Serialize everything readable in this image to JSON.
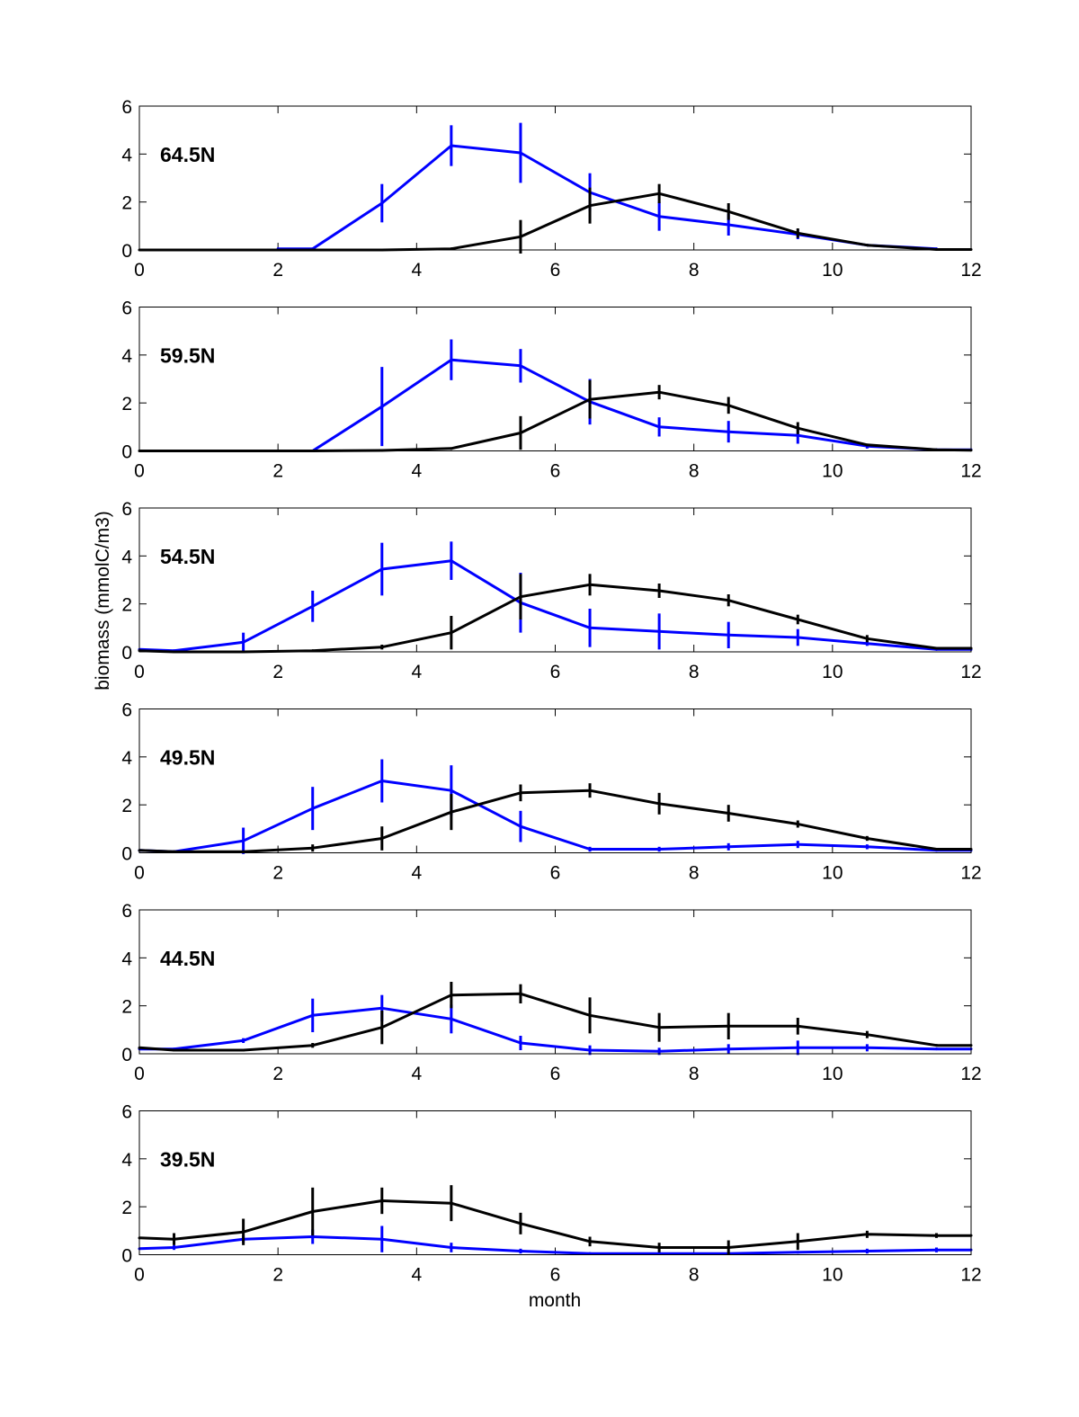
{
  "chart_data": {
    "type": "line",
    "xlabel": "month",
    "ylabel": "biomass (mmolC/m3)",
    "xlim": [
      0,
      12
    ],
    "ylim": [
      0,
      6
    ],
    "xticks": [
      0,
      2,
      4,
      6,
      8,
      10,
      12
    ],
    "yticks": [
      0,
      2,
      4,
      6
    ],
    "grid": false,
    "legend": null,
    "series_colors": {
      "blue": "#0000ff",
      "black": "#000000"
    },
    "panels": [
      {
        "label": "64.5N",
        "series": [
          {
            "name": "blue",
            "x": [
              2,
              2.5,
              3.5,
              4.5,
              5.5,
              6.5,
              7.5,
              8.5,
              9.5,
              10.5,
              11.5
            ],
            "y": [
              0.05,
              0.05,
              1.95,
              4.35,
              4.05,
              2.4,
              1.4,
              1.05,
              0.65,
              0.2,
              0.05
            ],
            "err": [
              0,
              0,
              0.8,
              0.85,
              1.25,
              0.8,
              0.6,
              0.45,
              0.2,
              0.05,
              0
            ]
          },
          {
            "name": "black",
            "x": [
              0,
              0.5,
              1.5,
              2.5,
              3.5,
              4.5,
              5.5,
              6.5,
              7.5,
              8.5,
              9.5,
              10.5,
              11.5,
              12
            ],
            "y": [
              0,
              0,
              0,
              0,
              0,
              0.05,
              0.55,
              1.85,
              2.35,
              1.6,
              0.7,
              0.2,
              0.02,
              0.02
            ],
            "err": [
              0,
              0,
              0,
              0,
              0,
              0,
              0.7,
              0.75,
              0.4,
              0.35,
              0.2,
              0.05,
              0,
              0
            ]
          }
        ]
      },
      {
        "label": "59.5N",
        "series": [
          {
            "name": "blue",
            "x": [
              2.5,
              3.5,
              4.5,
              5.5,
              6.5,
              7.5,
              8.5,
              9.5,
              10.5,
              11.5,
              12
            ],
            "y": [
              0,
              1.85,
              3.8,
              3.55,
              2.05,
              1.0,
              0.8,
              0.65,
              0.2,
              0.05,
              0.05
            ],
            "err": [
              0,
              1.65,
              0.85,
              0.7,
              0.95,
              0.4,
              0.45,
              0.35,
              0.1,
              0,
              0
            ]
          },
          {
            "name": "black",
            "x": [
              0,
              0.5,
              1.5,
              2.5,
              3.5,
              4.5,
              5.5,
              6.5,
              7.5,
              8.5,
              9.5,
              10.5,
              11.5,
              12
            ],
            "y": [
              0,
              0,
              0,
              0,
              0.02,
              0.1,
              0.75,
              2.15,
              2.45,
              1.9,
              0.95,
              0.25,
              0.05,
              0.03
            ],
            "err": [
              0,
              0,
              0,
              0,
              0,
              0.05,
              0.7,
              0.8,
              0.3,
              0.35,
              0.25,
              0.05,
              0,
              0
            ]
          }
        ]
      },
      {
        "label": "54.5N",
        "series": [
          {
            "name": "blue",
            "x": [
              0,
              0.5,
              1.5,
              2.5,
              3.5,
              4.5,
              5.5,
              6.5,
              7.5,
              8.5,
              9.5,
              10.5,
              11.5,
              12
            ],
            "y": [
              0.1,
              0.05,
              0.4,
              1.9,
              3.45,
              3.8,
              2.05,
              1.0,
              0.85,
              0.7,
              0.6,
              0.35,
              0.1,
              0.1
            ],
            "err": [
              0,
              0,
              0.4,
              0.65,
              1.1,
              0.8,
              1.25,
              0.8,
              0.75,
              0.55,
              0.35,
              0.1,
              0,
              0
            ]
          },
          {
            "name": "black",
            "x": [
              0,
              0.5,
              1.5,
              2.5,
              3.5,
              4.5,
              5.5,
              6.5,
              7.5,
              8.5,
              9.5,
              10.5,
              11.5,
              12
            ],
            "y": [
              0.05,
              0,
              0,
              0.05,
              0.2,
              0.8,
              2.3,
              2.8,
              2.55,
              2.15,
              1.35,
              0.55,
              0.15,
              0.15
            ],
            "err": [
              0,
              0,
              0,
              0,
              0.1,
              0.7,
              0.95,
              0.45,
              0.3,
              0.25,
              0.2,
              0.15,
              0,
              0
            ]
          }
        ]
      },
      {
        "label": "49.5N",
        "series": [
          {
            "name": "blue",
            "x": [
              0,
              0.5,
              1.5,
              2.5,
              3.5,
              4.5,
              5.5,
              6.5,
              7.5,
              8.5,
              9.5,
              10.5,
              11.5,
              12
            ],
            "y": [
              0.1,
              0.05,
              0.5,
              1.85,
              3.0,
              2.6,
              1.1,
              0.15,
              0.15,
              0.25,
              0.35,
              0.25,
              0.1,
              0.1
            ],
            "err": [
              0,
              0,
              0.55,
              0.9,
              0.9,
              1.05,
              0.65,
              0.1,
              0.1,
              0.15,
              0.15,
              0.1,
              0,
              0
            ]
          },
          {
            "name": "black",
            "x": [
              0,
              0.5,
              1.5,
              2.5,
              3.5,
              4.5,
              5.5,
              6.5,
              7.5,
              8.5,
              9.5,
              10.5,
              11.5,
              12
            ],
            "y": [
              0.1,
              0.05,
              0.05,
              0.2,
              0.6,
              1.7,
              2.5,
              2.6,
              2.05,
              1.65,
              1.2,
              0.6,
              0.15,
              0.15
            ],
            "err": [
              0,
              0,
              0,
              0.15,
              0.5,
              0.75,
              0.35,
              0.3,
              0.45,
              0.35,
              0.15,
              0.1,
              0,
              0
            ]
          }
        ]
      },
      {
        "label": "44.5N",
        "series": [
          {
            "name": "blue",
            "x": [
              0,
              0.5,
              1.5,
              2.5,
              3.5,
              4.5,
              5.5,
              6.5,
              7.5,
              8.5,
              9.5,
              10.5,
              11.5,
              12
            ],
            "y": [
              0.2,
              0.2,
              0.55,
              1.6,
              1.9,
              1.45,
              0.45,
              0.15,
              0.1,
              0.2,
              0.25,
              0.25,
              0.2,
              0.2
            ],
            "err": [
              0,
              0,
              0.1,
              0.7,
              0.55,
              0.6,
              0.3,
              0.2,
              0.15,
              0.2,
              0.3,
              0.15,
              0.05,
              0
            ]
          },
          {
            "name": "black",
            "x": [
              0,
              0.5,
              1.5,
              2.5,
              3.5,
              4.5,
              5.5,
              6.5,
              7.5,
              8.5,
              9.5,
              10.5,
              11.5,
              12
            ],
            "y": [
              0.25,
              0.15,
              0.15,
              0.35,
              1.1,
              2.45,
              2.5,
              1.6,
              1.1,
              1.15,
              1.15,
              0.8,
              0.35,
              0.35
            ],
            "err": [
              0,
              0.05,
              0.05,
              0.1,
              0.7,
              0.55,
              0.4,
              0.75,
              0.6,
              0.55,
              0.35,
              0.15,
              0.05,
              0
            ]
          }
        ]
      },
      {
        "label": "39.5N",
        "series": [
          {
            "name": "blue",
            "x": [
              0,
              0.5,
              1.5,
              2.5,
              3.5,
              4.5,
              5.5,
              6.5,
              7.5,
              8.5,
              9.5,
              10.5,
              11.5,
              12
            ],
            "y": [
              0.25,
              0.3,
              0.65,
              0.75,
              0.65,
              0.3,
              0.15,
              0.05,
              0.05,
              0.05,
              0.1,
              0.15,
              0.2,
              0.2
            ],
            "err": [
              0,
              0.1,
              0.15,
              0.3,
              0.55,
              0.2,
              0.1,
              0.05,
              0.05,
              0.05,
              0.05,
              0.1,
              0.1,
              0
            ]
          },
          {
            "name": "black",
            "x": [
              0,
              0.5,
              1.5,
              2.5,
              3.5,
              4.5,
              5.5,
              6.5,
              7.5,
              8.5,
              9.5,
              10.5,
              11.5,
              12
            ],
            "y": [
              0.7,
              0.65,
              0.95,
              1.8,
              2.25,
              2.15,
              1.3,
              0.55,
              0.3,
              0.3,
              0.55,
              0.85,
              0.8,
              0.8
            ],
            "err": [
              0,
              0.25,
              0.55,
              1.0,
              0.55,
              0.75,
              0.45,
              0.2,
              0.2,
              0.3,
              0.35,
              0.15,
              0.1,
              0
            ]
          }
        ]
      }
    ]
  }
}
